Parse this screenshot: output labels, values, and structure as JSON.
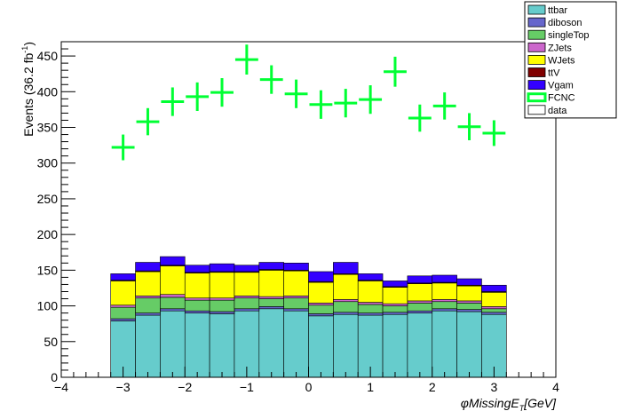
{
  "chart_data": {
    "type": "bar",
    "stacked": true,
    "xlabel": "φMissingE_{T}[GeV]",
    "xlabel_parts": {
      "phi": "φ",
      "main": "MissingE",
      "sub": "T",
      "unit": "[GeV]"
    },
    "ylabel": "Events (36.2 fb⁻¹)",
    "ylabel_parts": {
      "main": "Events (36.2 fb",
      "sup": "-1",
      "close": ")"
    },
    "xlim": [
      -4,
      4
    ],
    "ylim": [
      0,
      470
    ],
    "x_ticks": [
      -4,
      -3,
      -2,
      -1,
      0,
      1,
      2,
      3,
      4
    ],
    "x_tick_labels": [
      "−4",
      "−3",
      "−2",
      "−1",
      "0",
      "1",
      "2",
      "3",
      "4"
    ],
    "y_ticks": [
      0,
      50,
      100,
      150,
      200,
      250,
      300,
      350,
      400,
      450
    ],
    "y_tick_labels": [
      "0",
      "50",
      "100",
      "150",
      "200",
      "250",
      "300",
      "350",
      "400",
      "450"
    ],
    "bin_edges": [
      -3.2,
      -2.8,
      -2.4,
      -2.0,
      -1.6,
      -1.2,
      -0.8,
      -0.4,
      0.0,
      0.4,
      0.8,
      1.2,
      1.6,
      2.0,
      2.4,
      2.8,
      3.2
    ],
    "legend_position": "top-right",
    "series": [
      {
        "name": "ttbar",
        "color": "#66cccc",
        "style": "fill",
        "values": [
          79,
          87,
          93,
          90,
          89,
          93,
          96,
          93,
          86,
          88,
          87,
          88,
          90,
          93,
          92,
          88
        ]
      },
      {
        "name": "diboson",
        "color": "#6666cc",
        "style": "fill",
        "values": [
          3,
          3,
          3,
          3,
          3,
          3,
          3,
          3,
          3,
          3,
          3,
          3,
          3,
          3,
          3,
          3
        ]
      },
      {
        "name": "singleTop",
        "color": "#66cc66",
        "style": "fill",
        "values": [
          16,
          21,
          16,
          15,
          16,
          15,
          11,
          15,
          12,
          15,
          12,
          9,
          11,
          10,
          9,
          5
        ]
      },
      {
        "name": "ZJets",
        "color": "#cc66cc",
        "style": "fill",
        "values": [
          3,
          3,
          4,
          3,
          3,
          3,
          3,
          3,
          3,
          3,
          3,
          3,
          3,
          3,
          3,
          3
        ]
      },
      {
        "name": "WJets",
        "color": "#ffff00",
        "style": "fill",
        "values": [
          34,
          34,
          40,
          35,
          36,
          33,
          37,
          35,
          29,
          35,
          30,
          23,
          24,
          23,
          21,
          20
        ]
      },
      {
        "name": "ttV",
        "color": "#800000",
        "style": "fill",
        "values": [
          1,
          1,
          1,
          1,
          1,
          1,
          1,
          1,
          1,
          1,
          1,
          1,
          1,
          1,
          1,
          1
        ]
      },
      {
        "name": "Vgam",
        "color": "#3300ff",
        "style": "fill",
        "values": [
          9,
          12,
          12,
          10,
          11,
          9,
          10,
          10,
          14,
          16,
          9,
          8,
          10,
          10,
          9,
          9
        ]
      },
      {
        "name": "FCNC",
        "color": "#00ff33",
        "style": "marker",
        "values": [
          322,
          358,
          386,
          393,
          399,
          445,
          417,
          397,
          382,
          384,
          389,
          428,
          363,
          380,
          351,
          342
        ],
        "errors": [
          18,
          19,
          20,
          20,
          20,
          21,
          20,
          20,
          20,
          20,
          20,
          21,
          19,
          19,
          19,
          18
        ]
      },
      {
        "name": "data",
        "color": "#ffffff",
        "style": "outline",
        "values": []
      }
    ]
  }
}
